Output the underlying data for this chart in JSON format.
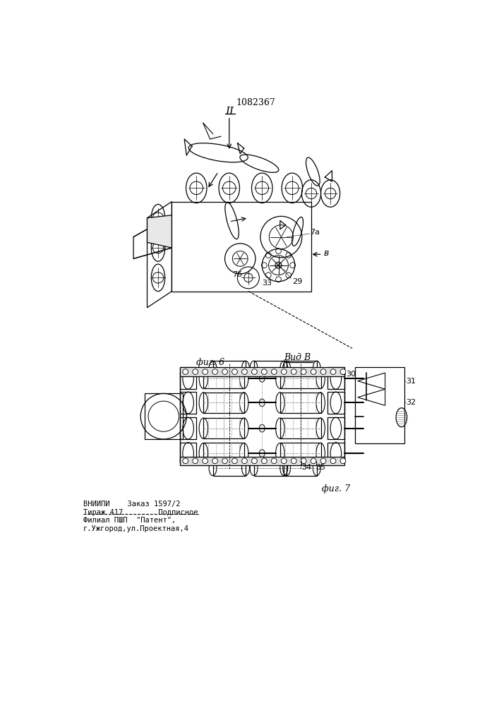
{
  "title": "1082367",
  "bg_color": "#ffffff",
  "fig6_label": "фиг. 6",
  "fig7_label": "фиг. 7",
  "vidB_label": "Вид B",
  "II_label": "II",
  "bottom_line1": "ВНИИПИ    Заказ 1597/2",
  "bottom_line2": "Тираж 417        Подписное",
  "bottom_line3": "Филиал ПШП  \"Патент\",",
  "bottom_line4": "г.Ужгород,ул.Проектная,4",
  "label_7a": "7а",
  "label_7b": "7б",
  "label_B": "в",
  "label_29": "29",
  "label_30": "30",
  "label_31": "31",
  "label_32": "32",
  "label_33": "33",
  "label_34": "34",
  "label_35": "35"
}
